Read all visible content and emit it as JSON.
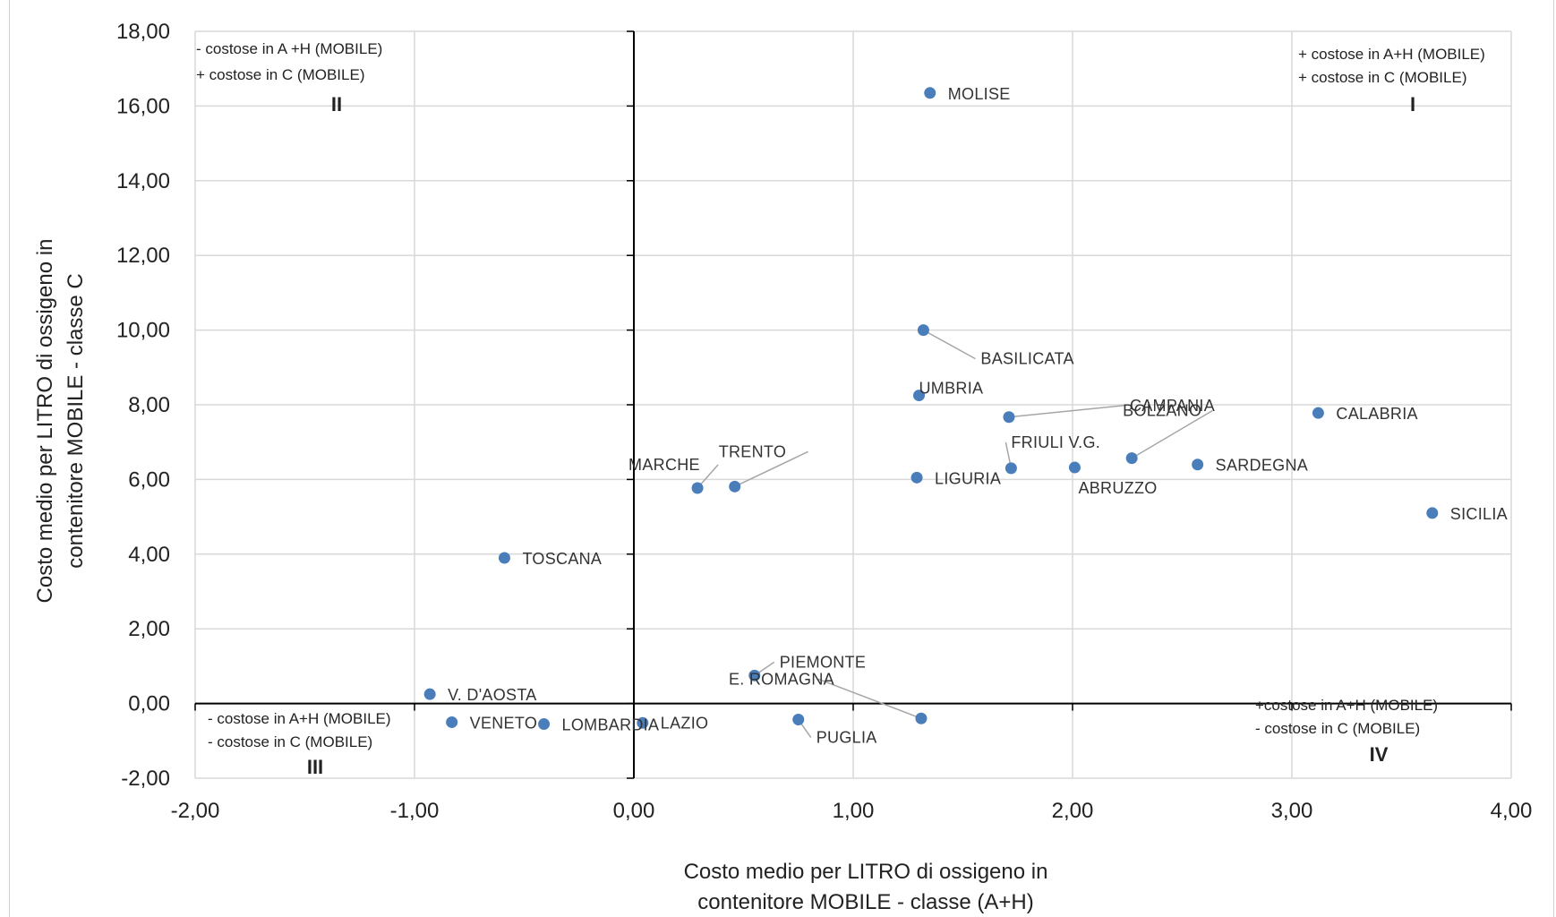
{
  "chart_data": {
    "type": "scatter",
    "title": "",
    "xlabel": [
      "Costo medio per LITRO di ossigeno in",
      "contenitore MOBILE - classe (A+H)"
    ],
    "ylabel": [
      "Costo medio per LITRO di ossigeno in",
      "contenitore  MOBILE - classe C"
    ],
    "xlim": [
      -2,
      4
    ],
    "ylim": [
      -2,
      18
    ],
    "x_ticks": [
      "-2,00",
      "-1,00",
      "0,00",
      "1,00",
      "2,00",
      "3,00",
      "4,00"
    ],
    "y_ticks": [
      "-2,00",
      "0,00",
      "2,00",
      "4,00",
      "6,00",
      "8,00",
      "10,00",
      "12,00",
      "14,00",
      "16,00",
      "18,00"
    ],
    "grid": true,
    "marker_color": "#4a7ebb",
    "points": [
      {
        "label": "MOLISE",
        "x": 1.35,
        "y": 16.35
      },
      {
        "label": "BASILICATA",
        "x": 1.32,
        "y": 10.0
      },
      {
        "label": "UMBRIA",
        "x": 1.3,
        "y": 8.25
      },
      {
        "label": "CAMPANIA",
        "x": 1.71,
        "y": 7.67
      },
      {
        "label": "BOLZANO",
        "x": 2.27,
        "y": 6.57
      },
      {
        "label": "CALABRIA",
        "x": 3.12,
        "y": 7.78
      },
      {
        "label": "FRIULI V.G.",
        "x": 1.72,
        "y": 6.3
      },
      {
        "label": "ABRUZZO",
        "x": 2.01,
        "y": 6.32
      },
      {
        "label": "SARDEGNA",
        "x": 2.57,
        "y": 6.4
      },
      {
        "label": "LIGURIA",
        "x": 1.29,
        "y": 6.05
      },
      {
        "label": "SICILIA",
        "x": 3.64,
        "y": 5.1
      },
      {
        "label": "MARCHE",
        "x": 0.29,
        "y": 5.77
      },
      {
        "label": "TRENTO",
        "x": 0.46,
        "y": 5.81
      },
      {
        "label": "TOSCANA",
        "x": -0.59,
        "y": 3.9
      },
      {
        "label": "PIEMONTE",
        "x": 0.55,
        "y": 0.75
      },
      {
        "label": "E. ROMAGNA",
        "x": 1.31,
        "y": -0.4
      },
      {
        "label": "PUGLIA",
        "x": 0.75,
        "y": -0.43
      },
      {
        "label": "V. D'AOSTA",
        "x": -0.93,
        "y": 0.25
      },
      {
        "label": "VENETO",
        "x": -0.83,
        "y": -0.5
      },
      {
        "label": "LOMBARDIA",
        "x": -0.41,
        "y": -0.55
      },
      {
        "label": "LAZIO",
        "x": 0.04,
        "y": -0.52
      }
    ],
    "quadrants": [
      {
        "id": "I",
        "lines": [
          "+ costose in A+H (MOBILE)",
          "+ costose in C (MOBILE)"
        ]
      },
      {
        "id": "II",
        "lines": [
          "-  costose in A +H (MOBILE)",
          "+ costose in C (MOBILE)"
        ]
      },
      {
        "id": "III",
        "lines": [
          "- costose in A+H (MOBILE)",
          "- costose in C (MOBILE)"
        ]
      },
      {
        "id": "IV",
        "lines": [
          "+costose in A+H (MOBILE)",
          "- costose in C (MOBILE)"
        ]
      }
    ]
  }
}
